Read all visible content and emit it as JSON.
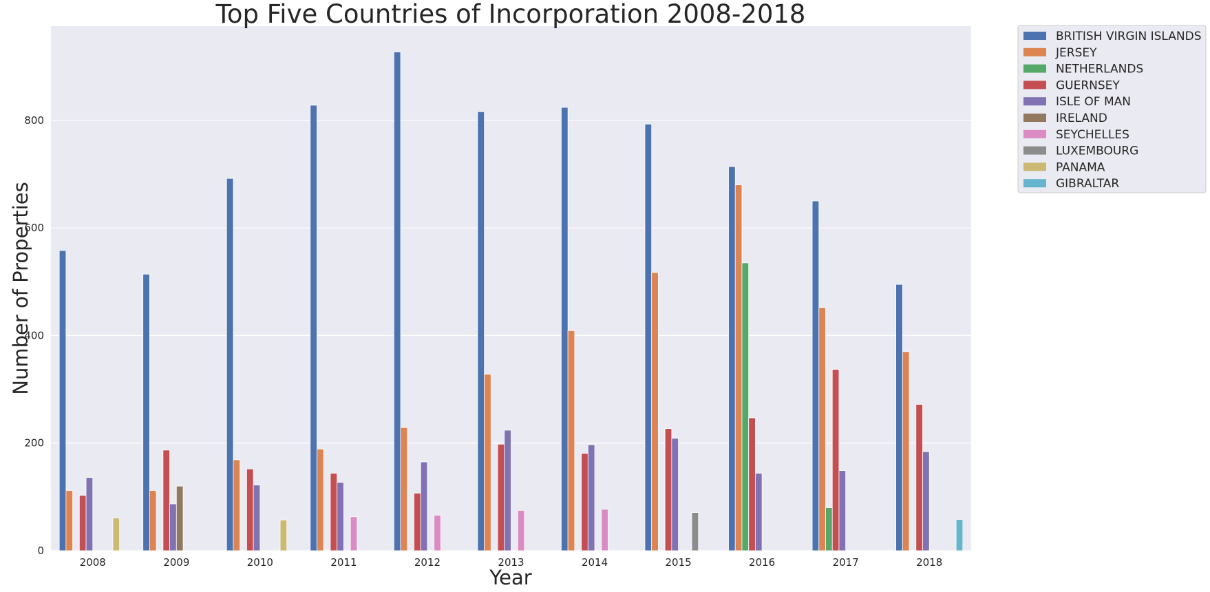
{
  "chart_data": {
    "type": "bar",
    "title": "Top Five Countries of Incorporation 2008-2018",
    "xlabel": "Year",
    "ylabel": "Number of Properties",
    "ylim": [
      0,
      975
    ],
    "yticks": [
      0,
      200,
      400,
      600,
      800
    ],
    "grid": true,
    "legend_position": "outside-top-right",
    "categories": [
      "2008",
      "2009",
      "2010",
      "2011",
      "2012",
      "2013",
      "2014",
      "2015",
      "2016",
      "2017",
      "2018"
    ],
    "series": [
      {
        "name": "BRITISH VIRGIN ISLANDS",
        "color": "#4c72b0",
        "values": [
          558,
          514,
          692,
          828,
          927,
          816,
          824,
          793,
          714,
          650,
          495
        ]
      },
      {
        "name": "JERSEY",
        "color": "#dd8452",
        "values": [
          112,
          112,
          169,
          189,
          229,
          328,
          409,
          517,
          680,
          452,
          370
        ]
      },
      {
        "name": "NETHERLANDS",
        "color": "#55a868",
        "values": [
          null,
          null,
          null,
          null,
          null,
          null,
          null,
          null,
          535,
          80,
          null
        ]
      },
      {
        "name": "GUERNSEY",
        "color": "#c44e52",
        "values": [
          103,
          187,
          152,
          144,
          107,
          198,
          181,
          227,
          247,
          337,
          272
        ]
      },
      {
        "name": "ISLE OF MAN",
        "color": "#8172b3",
        "values": [
          136,
          87,
          122,
          127,
          165,
          224,
          197,
          209,
          144,
          149,
          184
        ]
      },
      {
        "name": "IRELAND",
        "color": "#937860",
        "values": [
          null,
          120,
          null,
          null,
          null,
          null,
          null,
          null,
          null,
          null,
          null
        ]
      },
      {
        "name": "SEYCHELLES",
        "color": "#da8bc3",
        "values": [
          null,
          null,
          null,
          63,
          66,
          75,
          77,
          null,
          null,
          null,
          null
        ]
      },
      {
        "name": "LUXEMBOURG",
        "color": "#8c8c8c",
        "values": [
          null,
          null,
          null,
          null,
          null,
          null,
          null,
          71,
          null,
          null,
          null
        ]
      },
      {
        "name": "PANAMA",
        "color": "#ccb974",
        "values": [
          61,
          null,
          57,
          null,
          null,
          null,
          null,
          null,
          null,
          null,
          null
        ]
      },
      {
        "name": "GIBRALTAR",
        "color": "#64b5cd",
        "values": [
          null,
          null,
          null,
          null,
          null,
          null,
          null,
          null,
          null,
          null,
          58
        ]
      }
    ]
  }
}
